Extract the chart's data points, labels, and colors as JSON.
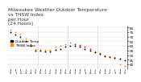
{
  "title": "Milwaukee Weather Outdoor Temperature\nvs THSW Index\nper Hour\n(24 Hours)",
  "title_fontsize": 4.2,
  "title_color": "#333333",
  "bg_color": "#ffffff",
  "grid_color": "#bbbbbb",
  "temp_color": "#000000",
  "thsw_orange": "#ff8800",
  "thsw_red": "#ff0000",
  "hours": [
    0,
    1,
    2,
    3,
    4,
    5,
    6,
    7,
    8,
    9,
    10,
    11,
    12,
    13,
    14,
    15,
    16,
    17,
    18,
    19,
    20,
    21,
    22,
    23
  ],
  "temp_values": [
    75,
    72,
    70,
    65,
    60,
    55,
    55,
    54,
    54,
    56,
    57,
    59,
    60,
    60,
    59,
    57,
    55,
    53,
    51,
    49,
    48,
    47,
    46,
    44
  ],
  "thsw_values": [
    78,
    75,
    73,
    68,
    62,
    57,
    57,
    56,
    56,
    59,
    60,
    62,
    64,
    62,
    61,
    59,
    57,
    54,
    52,
    50,
    49,
    48,
    40,
    38
  ],
  "thsw_is_red": [
    false,
    false,
    false,
    false,
    false,
    false,
    false,
    false,
    false,
    false,
    false,
    false,
    false,
    true,
    true,
    true,
    true,
    false,
    false,
    false,
    false,
    false,
    false,
    false
  ],
  "ylim_min": 35,
  "ylim_max": 82,
  "ytick_values": [
    40,
    45,
    50,
    55,
    60,
    65,
    70,
    75,
    80
  ],
  "vline_positions": [
    5.5,
    11.5,
    17.5
  ],
  "xtick_labels": [
    "0",
    "1",
    "2",
    "3",
    "4",
    "5",
    "0",
    "1",
    "2",
    "3",
    "4",
    "5",
    "0",
    "1",
    "2",
    "3",
    "4",
    "5",
    "0",
    "1",
    "2",
    "3",
    "4",
    "5"
  ],
  "markersize": 1.8,
  "legend_temp": "Outdoor Temp",
  "legend_thsw": "THSW Index",
  "legend_fontsize": 3.0
}
